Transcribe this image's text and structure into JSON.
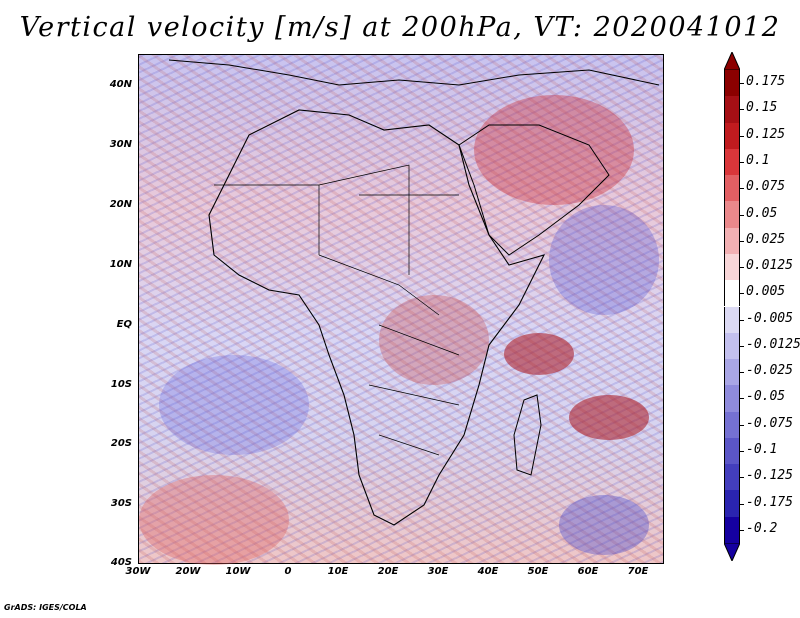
{
  "title": "Vertical velocity [m/s] at 200hPa, VT: 2020041012",
  "credit": "GrADS: IGES/COLA",
  "y_axis_labels": [
    "40N",
    "30N",
    "20N",
    "10N",
    "EQ",
    "10S",
    "20S",
    "30S",
    "40S"
  ],
  "x_axis_labels": [
    "30W",
    "20W",
    "10W",
    "0",
    "10E",
    "20E",
    "30E",
    "40E",
    "50E",
    "60E",
    "70E"
  ],
  "colorbar": {
    "labels": [
      "0.175",
      "0.15",
      "0.125",
      "0.1",
      "0.075",
      "0.05",
      "0.025",
      "0.0125",
      "0.005",
      "-0.005",
      "-0.0125",
      "-0.025",
      "-0.05",
      "-0.075",
      "-0.1",
      "-0.125",
      "-0.175",
      "-0.2"
    ],
    "colors": [
      "#8b0000",
      "#a50f15",
      "#c01b1f",
      "#d9363a",
      "#e25f63",
      "#ea888b",
      "#f2b0b3",
      "#f8d6d8",
      "#ffffff",
      "#dcdaf4",
      "#c3c0ee",
      "#a9a6e5",
      "#8f8bdc",
      "#7571d2",
      "#5b56c7",
      "#433ebd",
      "#2a24b0",
      "#1500a0"
    ]
  },
  "map": {
    "lat_range": [
      -40,
      45
    ],
    "lon_range": [
      -30,
      75
    ]
  }
}
